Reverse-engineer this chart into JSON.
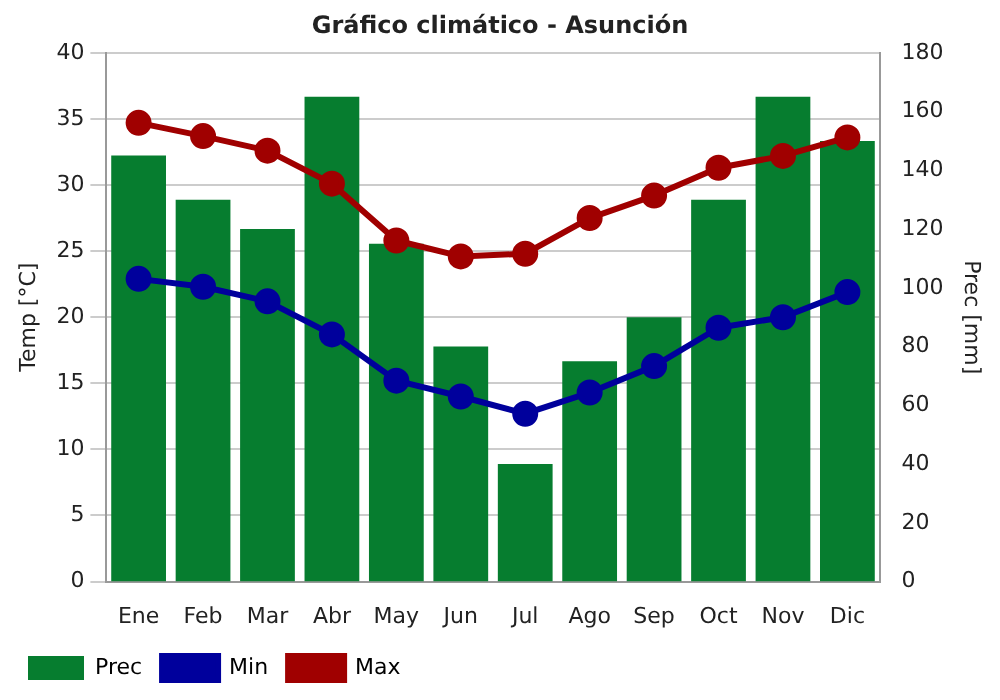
{
  "chart_data": {
    "type": "bar",
    "title": "Gráfico climático - Asunción",
    "ylabel": "Temp [°C]",
    "y2label": "Prec [mm]",
    "categories": [
      "Ene",
      "Feb",
      "Mar",
      "Abr",
      "May",
      "Jun",
      "Jul",
      "Ago",
      "Sep",
      "Oct",
      "Nov",
      "Dic"
    ],
    "series": [
      {
        "name": "Prec",
        "axis": "y2",
        "color": "#067d2f",
        "values": [
          145,
          130,
          120,
          165,
          115,
          80,
          40,
          75,
          90,
          130,
          165,
          150
        ]
      },
      {
        "name": "Min",
        "type": "line",
        "color": "#00009c",
        "values": [
          22.9,
          22.3,
          21.2,
          18.7,
          15.2,
          14.0,
          12.7,
          14.3,
          16.3,
          19.2,
          20.0,
          21.9
        ]
      },
      {
        "name": "Max",
        "type": "line",
        "color": "#a00000",
        "values": [
          34.7,
          33.7,
          32.6,
          30.1,
          25.8,
          24.6,
          24.8,
          27.5,
          29.2,
          31.3,
          32.2,
          33.6
        ]
      }
    ],
    "ylim": [
      0,
      40
    ],
    "yticks": [
      0,
      5,
      10,
      15,
      20,
      25,
      30,
      35,
      40
    ],
    "y2lim": [
      0,
      180
    ],
    "y2ticks": [
      0,
      20,
      40,
      60,
      80,
      100,
      120,
      140,
      160,
      180
    ],
    "grid": "y",
    "legend": "bottom",
    "marker": "circle"
  }
}
